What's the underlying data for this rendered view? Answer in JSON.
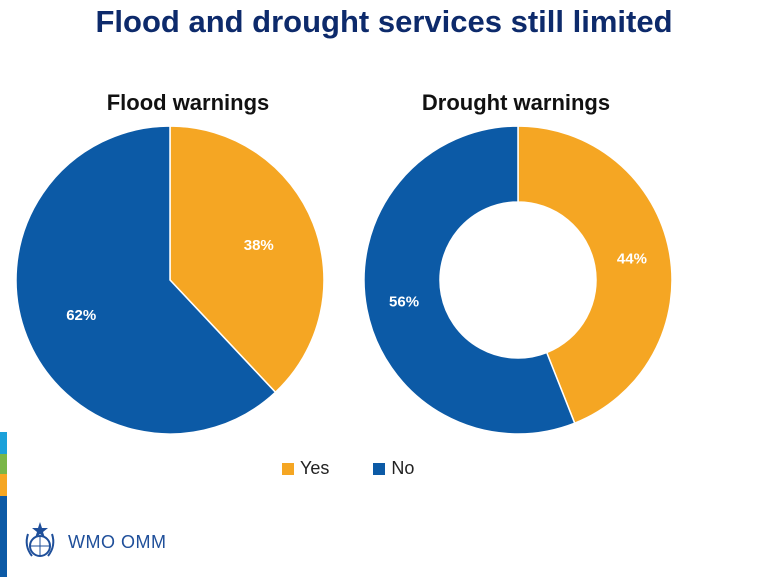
{
  "slide": {
    "title": "Flood and drought services still limited"
  },
  "colors": {
    "yes": "#F5A623",
    "no": "#0C5AA6",
    "title": "#0D2A6B",
    "stripe_cyan": "#1BA1DA",
    "stripe_green": "#7AB648",
    "stripe_orange": "#F5A623",
    "stripe_blue": "#0C5AA6"
  },
  "legend": {
    "yes_label": "Yes",
    "no_label": "No"
  },
  "logo": {
    "text": "WMO OMM",
    "icon": "wmo-emblem-icon"
  },
  "chart_data": [
    {
      "type": "pie",
      "title": "Flood warnings",
      "categories": [
        "Yes",
        "No"
      ],
      "values": [
        38,
        62
      ],
      "labels": [
        "38%",
        "62%"
      ]
    },
    {
      "type": "pie",
      "variant": "donut",
      "title": "Drought warnings",
      "categories": [
        "Yes",
        "No"
      ],
      "values": [
        44,
        56
      ],
      "labels": [
        "44%",
        "56%"
      ]
    }
  ]
}
